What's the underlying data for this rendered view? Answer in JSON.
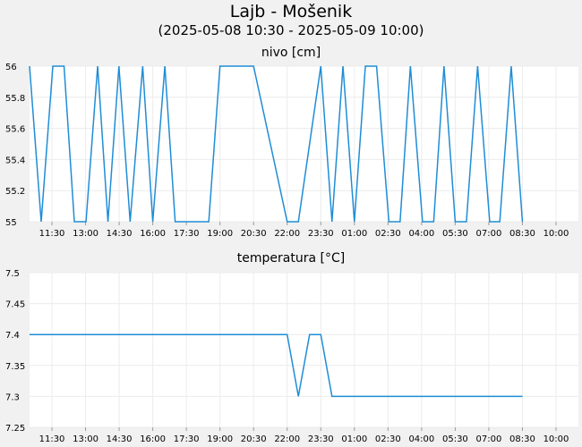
{
  "title": "Lajb - Mošenik",
  "subtitle": "(2025-05-08 10:30 - 2025-05-09 10:00)",
  "chart_data": [
    {
      "type": "line",
      "title": "nivo [cm]",
      "color": "#1f8dd6",
      "x_ticks": [
        "11:30",
        "13:00",
        "14:30",
        "16:00",
        "17:30",
        "19:00",
        "20:30",
        "22:00",
        "23:30",
        "01:00",
        "02:30",
        "04:00",
        "05:30",
        "07:00",
        "08:30",
        "10:00"
      ],
      "x_tick_hours": [
        1,
        2.5,
        4,
        5.5,
        7,
        8.5,
        10,
        11.5,
        13,
        14.5,
        16,
        17.5,
        19,
        20.5,
        22,
        23.5
      ],
      "x_start": "2025-05-08 10:30",
      "y_ticks": [
        "55",
        "55.2",
        "55.4",
        "55.6",
        "55.8",
        "56"
      ],
      "ylim": [
        55,
        56
      ],
      "x_hours": [
        0,
        0.52,
        1.04,
        1.54,
        2.0,
        2.52,
        3.04,
        3.5,
        3.99,
        4.49,
        5.05,
        5.5,
        6.04,
        6.5,
        8.0,
        8.5,
        9.04,
        10.0,
        11.5,
        12.0,
        13.0,
        13.5,
        13.99,
        14.5,
        14.99,
        15.49,
        16.04,
        16.54,
        17.0,
        17.54,
        18.04,
        18.5,
        19.0,
        19.5,
        20.0,
        20.54,
        20.99,
        21.5,
        22.0
      ],
      "y_values": [
        56,
        55,
        56,
        56,
        55,
        55,
        56,
        55,
        56,
        55,
        56,
        55,
        56,
        55,
        55,
        56,
        56,
        56,
        55,
        55,
        56,
        55,
        56,
        55,
        56,
        56,
        55,
        55,
        56,
        55,
        55,
        56,
        55,
        55,
        56,
        55,
        55,
        56,
        55
      ]
    },
    {
      "type": "line",
      "title": "temperatura [°C]",
      "color": "#1f8dd6",
      "x_ticks": [
        "11:30",
        "13:00",
        "14:30",
        "16:00",
        "17:30",
        "19:00",
        "20:30",
        "22:00",
        "23:30",
        "01:00",
        "02:30",
        "04:00",
        "05:30",
        "07:00",
        "08:30",
        "10:00"
      ],
      "x_tick_hours": [
        1,
        2.5,
        4,
        5.5,
        7,
        8.5,
        10,
        11.5,
        13,
        14.5,
        16,
        17.5,
        19,
        20.5,
        22,
        23.5
      ],
      "x_start": "2025-05-08 10:30",
      "y_ticks": [
        "7.25",
        "7.3",
        "7.35",
        "7.4",
        "7.45",
        "7.5"
      ],
      "ylim": [
        7.25,
        7.5
      ],
      "x_hours": [
        0,
        11.5,
        12.0,
        12.5,
        13.0,
        13.5,
        22.0
      ],
      "y_values": [
        7.4,
        7.4,
        7.3,
        7.4,
        7.4,
        7.3,
        7.3
      ]
    }
  ]
}
